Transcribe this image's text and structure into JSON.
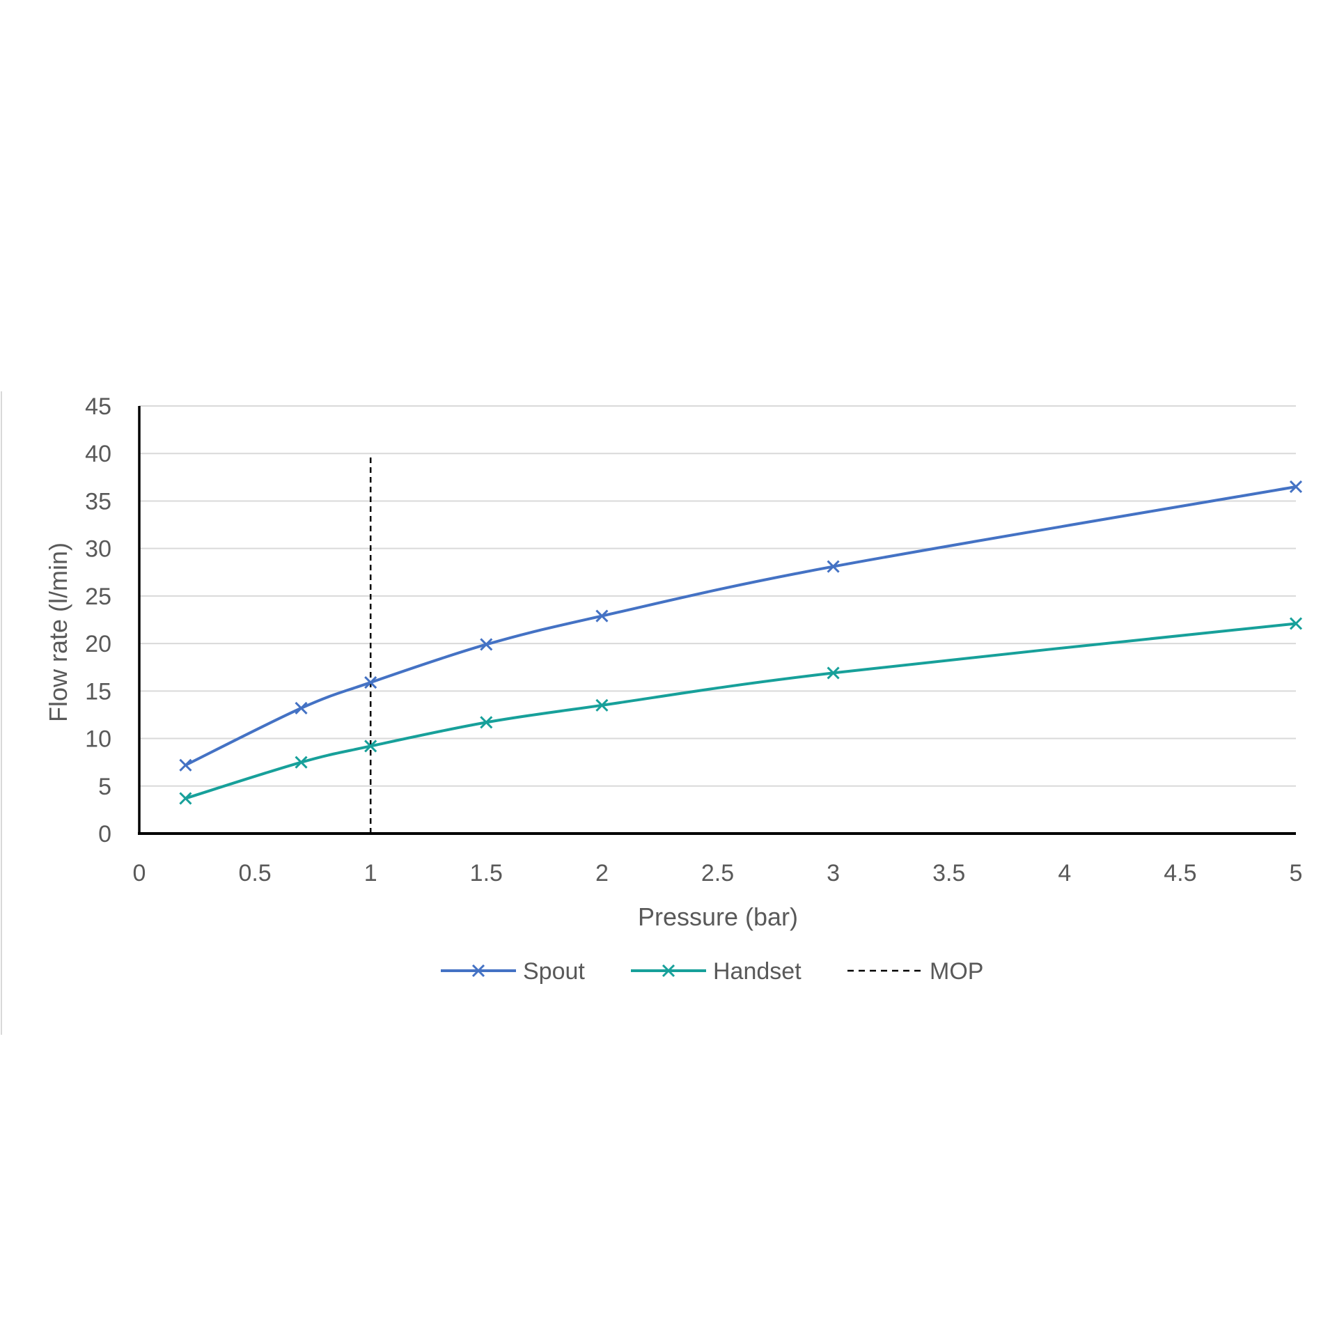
{
  "chart_data": {
    "type": "line",
    "title": "",
    "xlabel": "Pressure (bar)",
    "ylabel": "Flow rate (l/min)",
    "xlim": [
      0,
      5
    ],
    "ylim": [
      0,
      45
    ],
    "x_ticks": [
      0,
      0.5,
      1,
      1.5,
      2,
      2.5,
      3,
      3.5,
      4,
      4.5,
      5
    ],
    "x_tick_labels": [
      "0",
      "0.5",
      "1",
      "1.5",
      "2",
      "2.5",
      "3",
      "3.5",
      "4",
      "4.5",
      "5"
    ],
    "y_ticks": [
      0,
      5,
      10,
      15,
      20,
      25,
      30,
      35,
      40,
      45
    ],
    "y_tick_labels": [
      "0",
      "5",
      "10",
      "15",
      "20",
      "25",
      "30",
      "35",
      "40",
      "45"
    ],
    "grid": "horizontal",
    "legend_position": "bottom",
    "series": [
      {
        "name": "Spout",
        "color": "#4472C4",
        "marker": "x",
        "smooth": true,
        "x": [
          0.2,
          0.7,
          1,
          1.5,
          2,
          3,
          5
        ],
        "y": [
          7.2,
          13.2,
          15.9,
          19.9,
          22.9,
          28.1,
          36.5
        ]
      },
      {
        "name": "Handset",
        "color": "#17A09A",
        "marker": "x",
        "smooth": true,
        "x": [
          0.2,
          0.7,
          1,
          1.5,
          2,
          3,
          5
        ],
        "y": [
          3.7,
          7.5,
          9.2,
          11.7,
          13.5,
          16.9,
          22.1
        ]
      }
    ],
    "reference_lines": [
      {
        "name": "MOP",
        "orientation": "vertical",
        "x": 1,
        "y_range": [
          0,
          40
        ],
        "style": "dashed",
        "color": "#000000"
      }
    ]
  }
}
